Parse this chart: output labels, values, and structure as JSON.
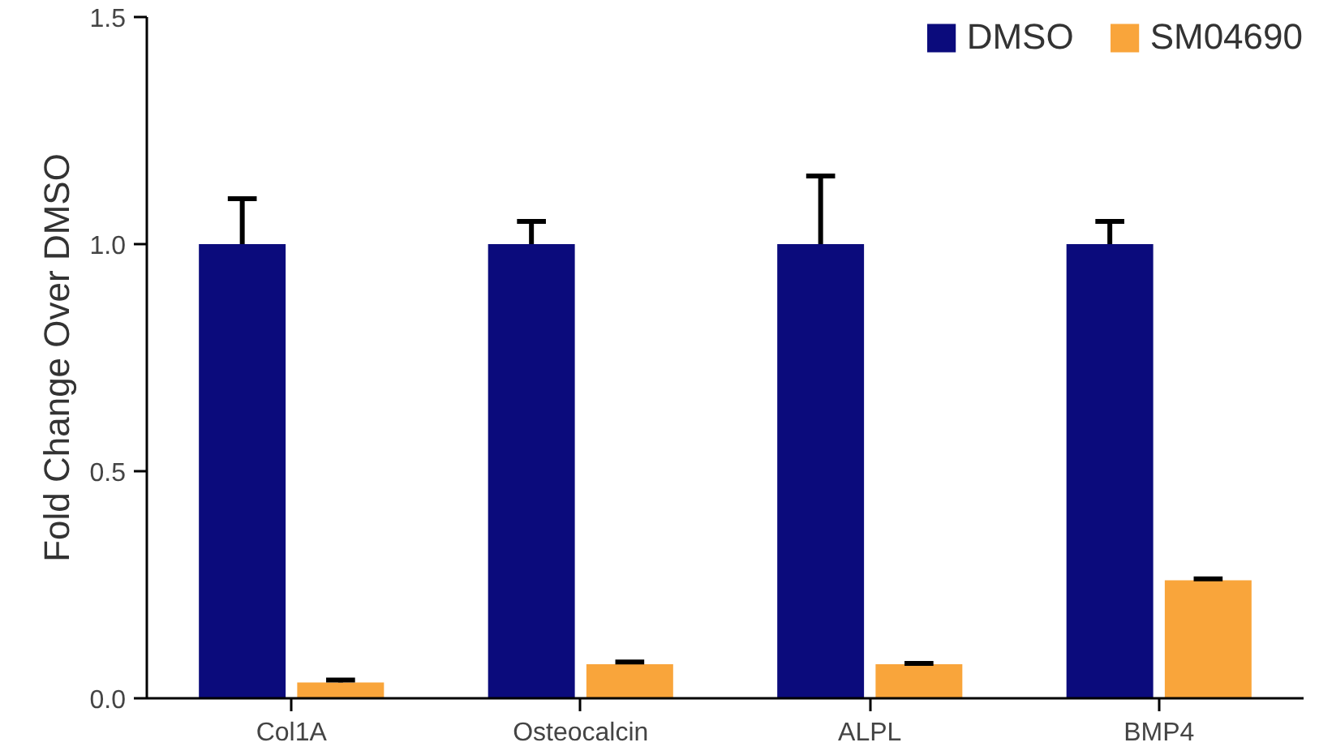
{
  "chart_data": {
    "type": "bar",
    "ylabel": "Fold Change Over DMSO",
    "categories": [
      "Col1A",
      "Osteocalcin",
      "ALPL",
      "BMP4"
    ],
    "series": [
      {
        "name": "DMSO",
        "color": "#0b0b7c",
        "values": [
          1.0,
          1.0,
          1.0,
          1.0
        ],
        "errors": [
          [
            1.0,
            1.1
          ],
          [
            1.0,
            1.05
          ],
          [
            1.0,
            1.15
          ],
          [
            1.0,
            1.05
          ]
        ]
      },
      {
        "name": "SM04690",
        "color": "#f9a53b",
        "values": [
          0.035,
          0.075,
          0.075,
          0.26
        ],
        "errors": [
          [
            0.035,
            0.04
          ],
          [
            0.075,
            0.08
          ],
          [
            0.075,
            0.077
          ],
          [
            0.26,
            0.263
          ]
        ]
      }
    ],
    "ylim": [
      0,
      1.5
    ],
    "yticks": [
      {
        "value": 0,
        "label": "0.0"
      },
      {
        "value": 0.5,
        "label": "0.5"
      },
      {
        "value": 1,
        "label": "1.0"
      },
      {
        "value": 1.5,
        "label": "1.5"
      }
    ],
    "grid": false,
    "legend": "top right"
  }
}
